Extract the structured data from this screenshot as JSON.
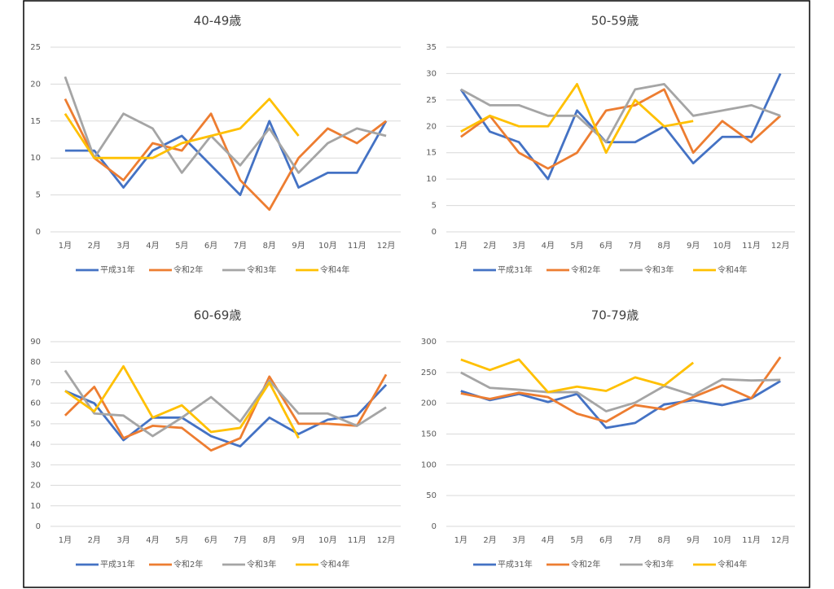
{
  "chart_data": [
    {
      "type": "line",
      "title": "40-49歳",
      "categories": [
        "1月",
        "2月",
        "3月",
        "4月",
        "5月",
        "6月",
        "7月",
        "8月",
        "9月",
        "10月",
        "11月",
        "12月"
      ],
      "ylim": [
        0,
        25
      ],
      "yticks": [
        0,
        5,
        10,
        15,
        20,
        25
      ],
      "grid": true,
      "legend": "bottom",
      "series": [
        {
          "name": "平成31年",
          "color": "#4472c4",
          "values": [
            11,
            11,
            6,
            11,
            13,
            9,
            5,
            15,
            6,
            8,
            8,
            15
          ]
        },
        {
          "name": "令和2年",
          "color": "#ed7d31",
          "values": [
            18,
            10,
            7,
            12,
            11,
            16,
            7,
            3,
            10,
            14,
            12,
            15
          ]
        },
        {
          "name": "令和3年",
          "color": "#a5a5a5",
          "values": [
            21,
            10,
            16,
            14,
            8,
            13,
            9,
            14,
            8,
            12,
            14,
            13
          ]
        },
        {
          "name": "令和4年",
          "color": "#ffc000",
          "values": [
            16,
            10,
            10,
            10,
            12,
            13,
            14,
            18,
            13,
            null,
            null,
            null
          ]
        }
      ]
    },
    {
      "type": "line",
      "title": "50-59歳",
      "categories": [
        "1月",
        "2月",
        "3月",
        "4月",
        "5月",
        "6月",
        "7月",
        "8月",
        "9月",
        "10月",
        "11月",
        "12月"
      ],
      "ylim": [
        0,
        35
      ],
      "yticks": [
        0,
        5,
        10,
        15,
        20,
        25,
        30,
        35
      ],
      "grid": true,
      "legend": "bottom",
      "series": [
        {
          "name": "平成31年",
          "color": "#4472c4",
          "values": [
            27,
            19,
            17,
            10,
            23,
            17,
            17,
            20,
            13,
            18,
            18,
            30
          ]
        },
        {
          "name": "令和2年",
          "color": "#ed7d31",
          "values": [
            18,
            22,
            15,
            12,
            15,
            23,
            24,
            27,
            15,
            21,
            17,
            22
          ]
        },
        {
          "name": "令和3年",
          "color": "#a5a5a5",
          "values": [
            27,
            24,
            24,
            22,
            22,
            17,
            27,
            28,
            22,
            23,
            24,
            22
          ]
        },
        {
          "name": "令和4年",
          "color": "#ffc000",
          "values": [
            19,
            22,
            20,
            20,
            28,
            15,
            25,
            20,
            21,
            null,
            null,
            null
          ]
        }
      ]
    },
    {
      "type": "line",
      "title": "60-69歳",
      "categories": [
        "1月",
        "2月",
        "3月",
        "4月",
        "5月",
        "6月",
        "7月",
        "8月",
        "9月",
        "10月",
        "11月",
        "12月"
      ],
      "ylim": [
        0,
        90
      ],
      "yticks": [
        0,
        10,
        20,
        30,
        40,
        50,
        60,
        70,
        80,
        90
      ],
      "grid": true,
      "legend": "bottom",
      "series": [
        {
          "name": "平成31年",
          "color": "#4472c4",
          "values": [
            66,
            60,
            42,
            53,
            53,
            44,
            39,
            53,
            45,
            52,
            54,
            69
          ]
        },
        {
          "name": "令和2年",
          "color": "#ed7d31",
          "values": [
            54,
            68,
            43,
            49,
            48,
            37,
            43,
            73,
            50,
            50,
            49,
            74
          ]
        },
        {
          "name": "令和3年",
          "color": "#a5a5a5",
          "values": [
            76,
            55,
            54,
            44,
            53,
            63,
            51,
            71,
            55,
            55,
            49,
            58
          ]
        },
        {
          "name": "令和4年",
          "color": "#ffc000",
          "values": [
            66,
            56,
            78,
            53,
            59,
            46,
            48,
            70,
            43,
            null,
            null,
            null
          ]
        }
      ]
    },
    {
      "type": "line",
      "title": "70-79歳",
      "categories": [
        "1月",
        "2月",
        "3月",
        "4月",
        "5月",
        "6月",
        "7月",
        "8月",
        "9月",
        "10月",
        "11月",
        "12月"
      ],
      "ylim": [
        0,
        300
      ],
      "yticks": [
        0,
        50,
        100,
        150,
        200,
        250,
        300
      ],
      "grid": true,
      "legend": "bottom",
      "series": [
        {
          "name": "平成31年",
          "color": "#4472c4",
          "values": [
            220,
            205,
            215,
            202,
            215,
            160,
            168,
            198,
            205,
            197,
            208,
            236
          ]
        },
        {
          "name": "令和2年",
          "color": "#ed7d31",
          "values": [
            216,
            207,
            217,
            210,
            183,
            170,
            197,
            190,
            210,
            229,
            208,
            275
          ]
        },
        {
          "name": "令和3年",
          "color": "#a5a5a5",
          "values": [
            250,
            225,
            222,
            218,
            218,
            187,
            201,
            228,
            213,
            239,
            237,
            238
          ]
        },
        {
          "name": "令和4年",
          "color": "#ffc000",
          "values": [
            271,
            254,
            271,
            218,
            227,
            220,
            242,
            229,
            266,
            null,
            null,
            null
          ]
        }
      ]
    }
  ]
}
